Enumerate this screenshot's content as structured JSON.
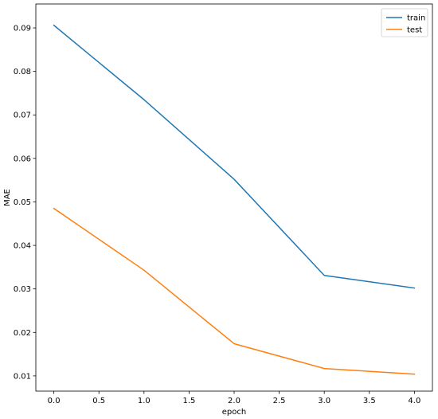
{
  "chart_data": {
    "type": "line",
    "title": "",
    "xlabel": "epoch",
    "ylabel": "MAE",
    "xlim": [
      -0.2,
      4.2
    ],
    "ylim": [
      0.0065,
      0.0955
    ],
    "xticks": [
      0.0,
      0.5,
      1.0,
      1.5,
      2.0,
      2.5,
      3.0,
      3.5,
      4.0
    ],
    "xtick_labels": [
      "0.0",
      "0.5",
      "1.0",
      "1.5",
      "2.0",
      "2.5",
      "3.0",
      "3.5",
      "4.0"
    ],
    "yticks": [
      0.01,
      0.02,
      0.03,
      0.04,
      0.05,
      0.06,
      0.07,
      0.08,
      0.09
    ],
    "ytick_labels": [
      "0.01",
      "0.02",
      "0.03",
      "0.04",
      "0.05",
      "0.06",
      "0.07",
      "0.08",
      "0.09"
    ],
    "x": [
      0,
      1,
      2,
      3,
      4
    ],
    "series": [
      {
        "name": "train",
        "color": "#1f77b4",
        "values": [
          0.0906,
          0.0735,
          0.0552,
          0.0331,
          0.0302
        ]
      },
      {
        "name": "test",
        "color": "#ff7f0e",
        "values": [
          0.0485,
          0.0343,
          0.0174,
          0.0117,
          0.0104
        ]
      }
    ],
    "grid": false,
    "legend": {
      "position": "upper right"
    }
  }
}
